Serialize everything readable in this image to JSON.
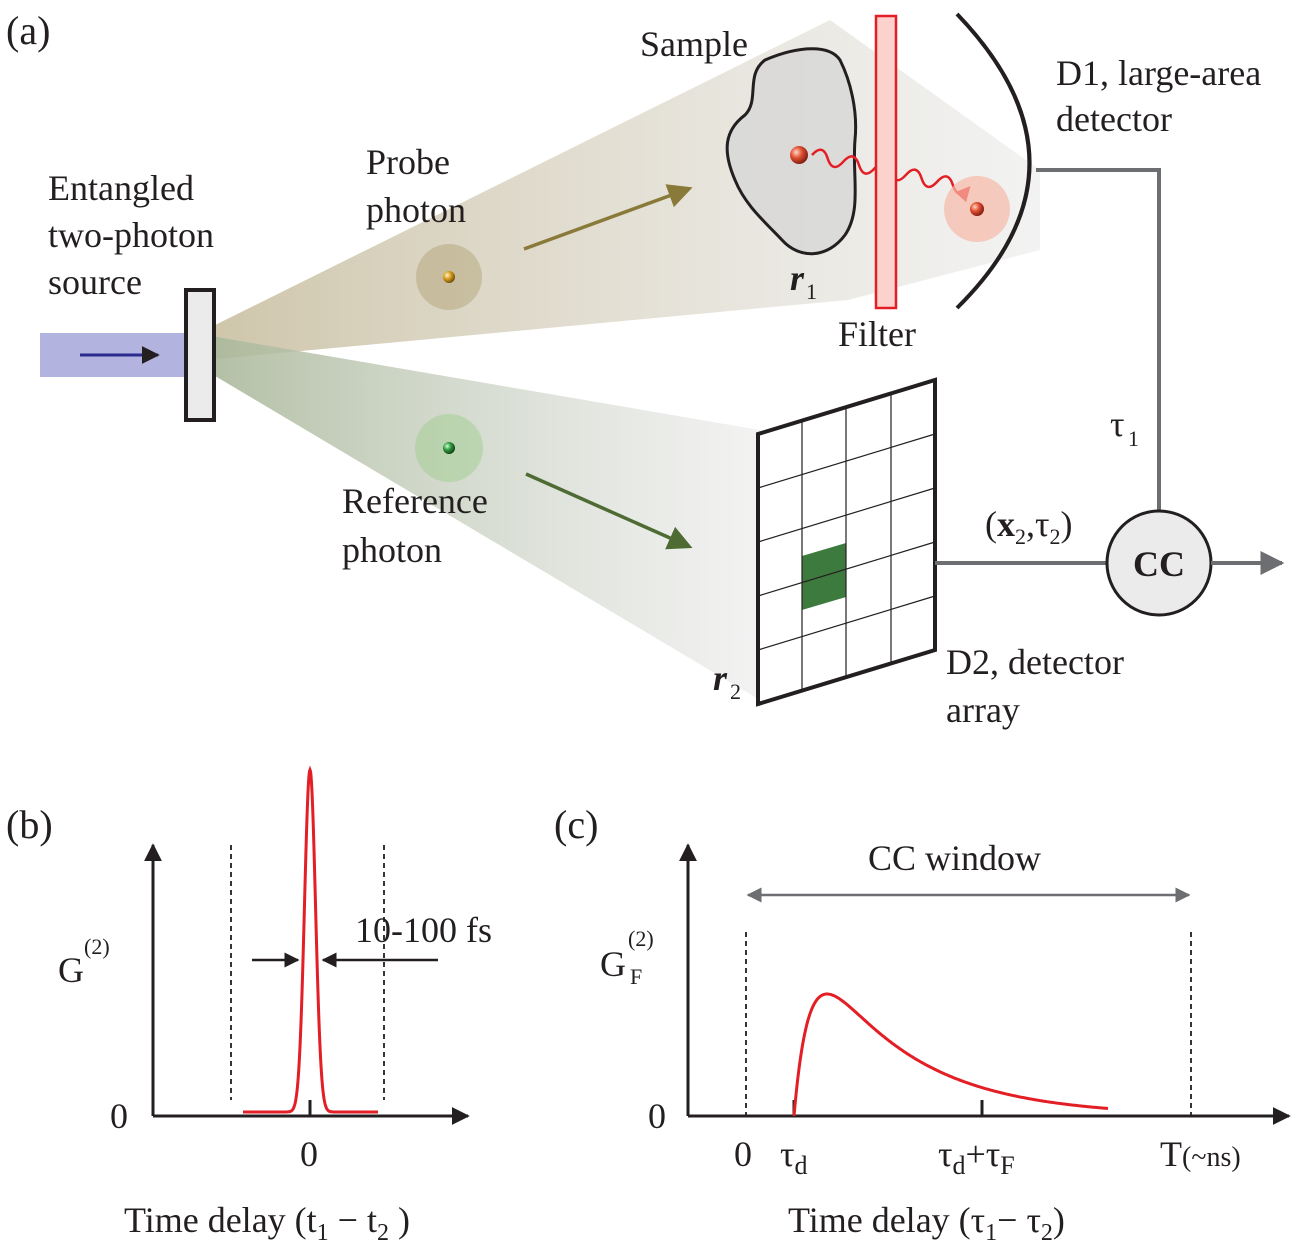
{
  "panels": {
    "a": "(a)",
    "b": "(b)",
    "c": "(c)"
  },
  "source": {
    "line1": "Entangled",
    "line2": "two-photon",
    "line3": "source"
  },
  "probe": {
    "line1": "Probe",
    "line2": "photon"
  },
  "reference": {
    "line1": "Reference",
    "line2": "photon"
  },
  "sample": {
    "label": "Sample",
    "position_symbol": "r",
    "position_sub": "1"
  },
  "filter": {
    "label": "Filter"
  },
  "d1": {
    "line1": "D1, large-area",
    "line2": "detector"
  },
  "d2": {
    "line1": "D2, detector",
    "line2": "array",
    "position_symbol": "r",
    "position_sub": "2"
  },
  "tau1": {
    "symbol": "τ",
    "sub": "1"
  },
  "d2_signal": {
    "open": "(",
    "x": "x",
    "x_sub": "2",
    "sep": ",τ",
    "tau_sub": "2",
    "close": ")"
  },
  "cc": {
    "label": "CC"
  },
  "plot_b": {
    "ylabel": "G",
    "ylabel_sup": "(2)",
    "y_zero": "0",
    "x_zero": "0",
    "width_label": "10-100 fs",
    "xlabel_pre": "Time delay (",
    "t1": "t",
    "t1_sub": "1",
    "minus": " −  ",
    "t2": "t",
    "t2_sub": "2",
    "close": " )"
  },
  "plot_c": {
    "ylabel": "G",
    "ylabel_sup": "(2)",
    "ylabel_sub": "F",
    "y_zero": "0",
    "x_zero": "0",
    "tick_td": "τ",
    "tick_td_sub": "d",
    "tick_tdf_a": "τ",
    "tick_tdf_a_sub": "d",
    "tick_tdf_plus": "+τ",
    "tick_tdf_b_sub": "F",
    "tick_T": "T",
    "tick_T_unit": "(~ns)",
    "window_label": "CC window",
    "xlabel_pre": "Time delay (",
    "tau1": "τ",
    "tau1_sub": "1",
    "minus": "−  ",
    "tau2": "τ",
    "tau2_sub": "2",
    "close": ")"
  },
  "colors": {
    "red": "#e31e24",
    "dark_green": "#3d7a3d",
    "olive_arrow": "#8a7a3a",
    "green_arrow": "#4f6b34",
    "pump": "#b3b3e0",
    "pump_arrow": "#2b2b8f",
    "wire": "#6d6e71"
  }
}
